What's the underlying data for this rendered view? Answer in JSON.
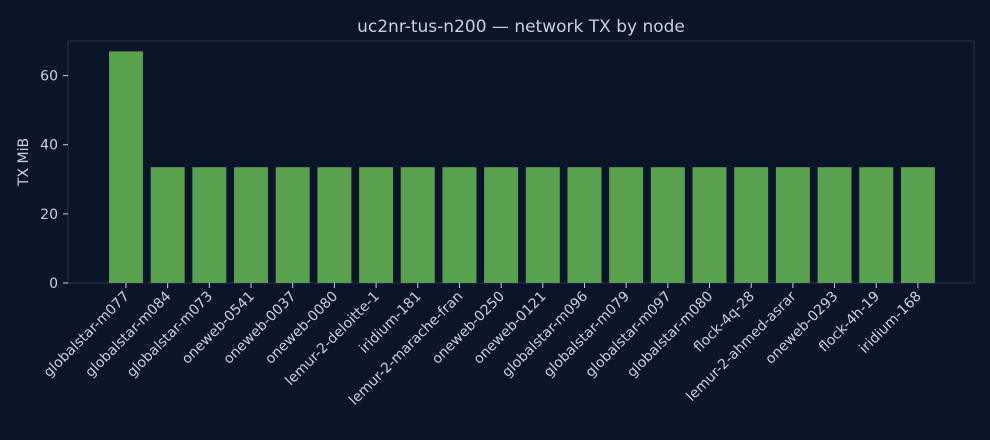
{
  "chart_data": {
    "type": "bar",
    "title": "uc2nr-tus-n200 — network TX by node",
    "xlabel": "",
    "ylabel": "TX MiB",
    "ylim": [
      0,
      70
    ],
    "yticks": [
      0,
      20,
      40,
      60
    ],
    "grid": false,
    "categories": [
      "globalstar-m077",
      "globalstar-m084",
      "globalstar-m073",
      "oneweb-0541",
      "oneweb-0037",
      "oneweb-0080",
      "lemur-2-deloitte-1",
      "iridium-181",
      "lemur-2-marache-fran",
      "oneweb-0250",
      "oneweb-0121",
      "globalstar-m096",
      "globalstar-m079",
      "globalstar-m097",
      "globalstar-m080",
      "flock-4q-28",
      "lemur-2-ahmed-asrar",
      "oneweb-0293",
      "flock-4h-19",
      "iridium-168"
    ],
    "values": [
      67,
      33.5,
      33.5,
      33.5,
      33.5,
      33.5,
      33.5,
      33.5,
      33.5,
      33.5,
      33.5,
      33.5,
      33.5,
      33.5,
      33.5,
      33.5,
      33.5,
      33.5,
      33.5,
      33.5
    ],
    "colors": {
      "background": "#0b1428",
      "bar": "#59a14f",
      "frame": "#2a3448",
      "text": "#c9d1e0"
    }
  }
}
